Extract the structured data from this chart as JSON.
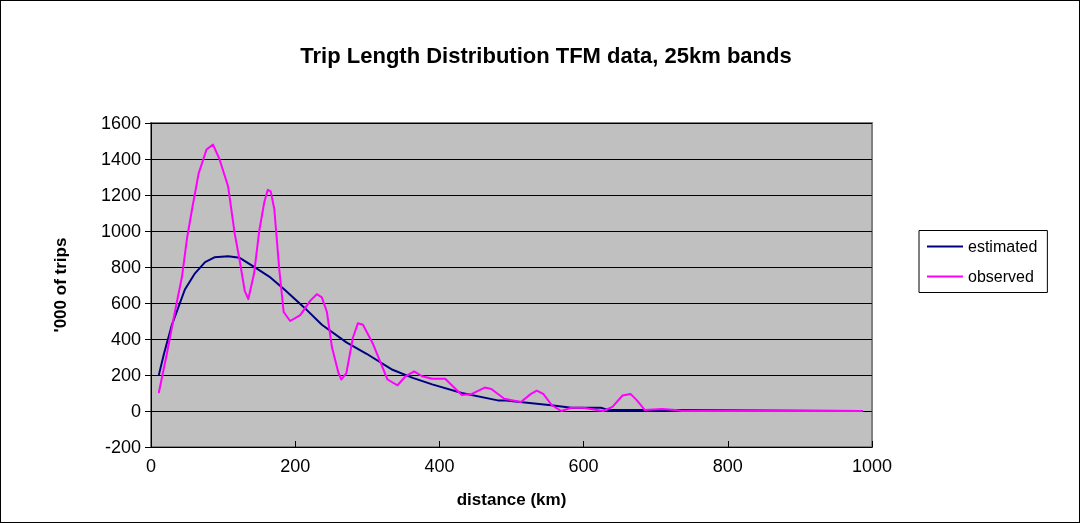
{
  "chart_data": {
    "type": "line",
    "title": "Trip Length Distribution TFM data, 25km bands",
    "xlabel": "distance (km)",
    "ylabel": "'000 of trips",
    "xlim": [
      0,
      1000
    ],
    "xticks": [
      0,
      200,
      400,
      600,
      800,
      1000
    ],
    "ylim": [
      -200,
      1600
    ],
    "yticks": [
      -200,
      0,
      200,
      400,
      600,
      800,
      1000,
      1200,
      1400,
      1600
    ],
    "grid": "y",
    "legend": "right",
    "marker": "none",
    "line_style": "solid",
    "series": [
      {
        "name": "estimated",
        "color": "#000080",
        "x": [
          11,
          18,
          29,
          47,
          61,
          75,
          88,
          107,
          123,
          143,
          164,
          185,
          212,
          237,
          271,
          299,
          335,
          363,
          390,
          431,
          481,
          490,
          555,
          583,
          624,
          635,
          710,
          986
        ],
        "values": [
          202,
          318,
          479,
          675,
          765,
          827,
          854,
          860,
          851,
          801,
          747,
          675,
          577,
          479,
          381,
          318,
          229,
          184,
          148,
          100,
          59,
          59,
          32,
          18,
          18,
          5,
          5,
          0
        ]
      },
      {
        "name": "observed",
        "color": "#ff00ff",
        "x": [
          11,
          22,
          34,
          43,
          50,
          57,
          66,
          77,
          86,
          95,
          107,
          116,
          123,
          130,
          135,
          143,
          150,
          157,
          162,
          166,
          171,
          178,
          184,
          193,
          207,
          221,
          230,
          237,
          244,
          251,
          260,
          264,
          271,
          280,
          287,
          294,
          308,
          317,
          328,
          342,
          353,
          365,
          376,
          390,
          408,
          431,
          445,
          463,
          472,
          490,
          513,
          527,
          535,
          544,
          556,
          569,
          583,
          599,
          627,
          640,
          654,
          665,
          674,
          685,
          709,
          727,
          736,
          986
        ],
        "values": [
          104,
          318,
          568,
          747,
          961,
          1122,
          1319,
          1453,
          1480,
          1399,
          1247,
          988,
          836,
          667,
          622,
          765,
          997,
          1158,
          1229,
          1220,
          1122,
          783,
          550,
          500,
          533,
          613,
          649,
          631,
          550,
          354,
          211,
          175,
          211,
          407,
          488,
          479,
          372,
          282,
          175,
          143,
          193,
          220,
          193,
          179,
          179,
          89,
          95,
          130,
          122,
          68,
          50,
          95,
          113,
          95,
          32,
          0,
          18,
          18,
          0,
          23,
          86,
          95,
          59,
          5,
          11,
          5,
          0,
          0
        ]
      }
    ]
  }
}
